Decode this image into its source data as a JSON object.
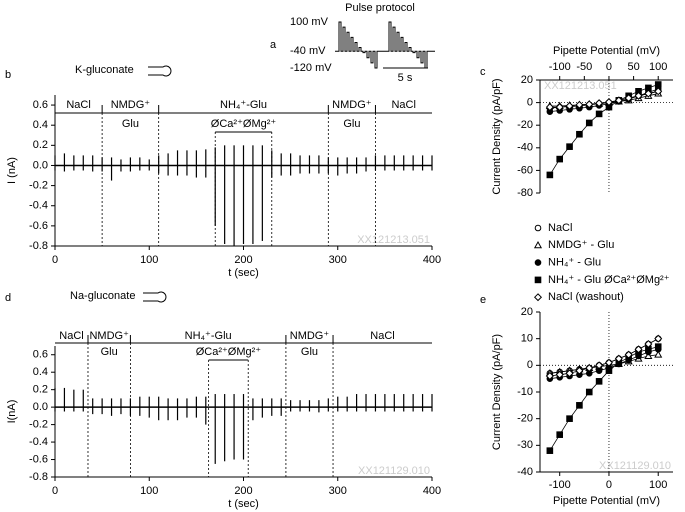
{
  "chart_data": [
    {
      "type": "protocol",
      "panel": "a",
      "title": "Pulse protocol",
      "levels": [
        {
          "value": 100,
          "label": "100 mV"
        },
        {
          "value": -40,
          "label": "-40 mV"
        },
        {
          "value": -120,
          "label": "-120 mV"
        }
      ],
      "scale_bar": "5 s"
    },
    {
      "type": "trace",
      "panel": "b",
      "pipette": "K-gluconate",
      "xlabel": "t (sec)",
      "ylabel": "I (nA)",
      "watermark": "XX121213.051",
      "xlim": [
        0,
        400
      ],
      "ylim": [
        -0.8,
        0.7
      ],
      "xticks": [
        0,
        100,
        200,
        300,
        400
      ],
      "yticks": [
        0.6,
        0.4,
        0.2,
        {
          "value": 0,
          "label": "0.0"
        },
        -0.2,
        -0.4,
        -0.6,
        -0.8
      ],
      "x": [
        0,
        10,
        20,
        30,
        40,
        50,
        60,
        70,
        80,
        90,
        100,
        110,
        120,
        130,
        140,
        150,
        160,
        170,
        180,
        190,
        200,
        210,
        220,
        230,
        240,
        250,
        260,
        270,
        280,
        290,
        300,
        310,
        320,
        330,
        340,
        350,
        360,
        370,
        380,
        390,
        400
      ],
      "series": [
        {
          "color": "#000000",
          "values": [
            0.1,
            0.12,
            0.1,
            0.1,
            0.1,
            0.08,
            0.08,
            0.06,
            0.08,
            0.08,
            0.06,
            0.1,
            0.12,
            0.15,
            0.15,
            0.15,
            0.16,
            0.18,
            0.2,
            0.2,
            0.2,
            0.2,
            0.2,
            0.15,
            0.12,
            0.12,
            0.1,
            0.1,
            0.1,
            0.08,
            0.08,
            0.08,
            0.08,
            0.08,
            0.1,
            0.1,
            0.1,
            0.1,
            0.1,
            0.1,
            0.1
          ]
        },
        {
          "color": "#000000",
          "values": [
            -0.05,
            -0.06,
            -0.05,
            -0.05,
            -0.06,
            -0.06,
            -0.15,
            -0.06,
            -0.06,
            -0.05,
            -0.05,
            -0.08,
            -0.1,
            -0.1,
            -0.1,
            -0.12,
            -0.12,
            -0.6,
            -0.78,
            -0.8,
            -0.78,
            -0.78,
            -0.75,
            -0.12,
            -0.1,
            -0.1,
            -0.08,
            -0.08,
            -0.08,
            -0.08,
            -0.1,
            -0.08,
            -0.08,
            -0.06,
            -0.05,
            -0.05,
            -0.05,
            -0.05,
            -0.05,
            -0.05,
            -0.05
          ]
        }
      ],
      "solutions": [
        {
          "label": [
            "NaCl"
          ],
          "start": 0,
          "end": 50
        },
        {
          "label": [
            "NMDG⁺",
            "Glu"
          ],
          "start": 50,
          "end": 110
        },
        {
          "label": [
            "NH₄⁺-Glu"
          ],
          "start": 110,
          "end": 290
        },
        {
          "label": [
            "NMDG⁺",
            "Glu"
          ],
          "start": 290,
          "end": 340
        },
        {
          "label": [
            "NaCl"
          ],
          "start": 340,
          "end": 400
        }
      ],
      "divalent_free": {
        "label": "ØCa²⁺ØMg²⁺",
        "start": 170,
        "end": 230
      }
    },
    {
      "type": "iv",
      "panel": "c",
      "xlabel": "Pipette Potential (mV)",
      "ylabel": "Current Density (pA/pF)",
      "xaxis": "top",
      "watermark": "XX121213.051",
      "xlim": [
        -140,
        130
      ],
      "ylim": [
        -80,
        20
      ],
      "xticks": [
        -100,
        -50,
        0,
        50,
        100
      ],
      "yticks": [
        20,
        0,
        -20,
        -40,
        -60,
        -80
      ],
      "x": [
        -120,
        -100,
        -80,
        -60,
        -40,
        -20,
        0,
        20,
        40,
        60,
        80,
        100
      ],
      "series": [
        {
          "name": "NaCl",
          "color": "#000000",
          "marker": "circle-open",
          "values": [
            -5,
            -4,
            -3.5,
            -3,
            -2,
            -1,
            0,
            2,
            4,
            6,
            8,
            10
          ]
        },
        {
          "name": "NMDG⁺ - Glu",
          "color": "#000000",
          "marker": "triangle-open",
          "values": [
            -3,
            -3,
            -2.5,
            -2,
            -1.5,
            -1,
            0,
            1,
            2,
            4,
            6,
            8
          ]
        },
        {
          "name": "NH₄⁺ - Glu",
          "color": "#000000",
          "marker": "circle-filled",
          "values": [
            -8,
            -7,
            -6,
            -5,
            -4,
            -2.5,
            -1,
            1,
            3,
            6,
            9,
            12
          ]
        },
        {
          "name": "NH₄⁺ - Glu ØCa²⁺ØMg²⁺",
          "color": "#000000",
          "marker": "square-filled",
          "values": [
            -64,
            -50,
            -39,
            -28,
            -18,
            -10,
            -4,
            2,
            6,
            10,
            13,
            16
          ]
        },
        {
          "name": "NaCl (washout)",
          "color": "#000000",
          "marker": "diamond-open",
          "values": [
            -4,
            -4,
            -3,
            -2,
            -1.5,
            -0.5,
            0.5,
            2,
            4,
            6,
            8,
            10
          ]
        }
      ]
    },
    {
      "type": "trace",
      "panel": "d",
      "pipette": "Na-gluconate",
      "xlabel": "t (sec)",
      "ylabel": "I(nA)",
      "watermark": "XX121129.010",
      "xlim": [
        0,
        400
      ],
      "ylim": [
        -0.8,
        0.7
      ],
      "xticks": [
        0,
        100,
        200,
        300,
        400
      ],
      "yticks": [
        0.6,
        0.4,
        0.2,
        {
          "value": 0,
          "label": "0.0"
        },
        -0.2,
        -0.4,
        -0.6,
        -0.8
      ],
      "x": [
        0,
        10,
        20,
        30,
        40,
        50,
        60,
        70,
        80,
        90,
        100,
        110,
        120,
        130,
        140,
        150,
        160,
        170,
        180,
        190,
        200,
        210,
        220,
        230,
        240,
        250,
        260,
        270,
        280,
        290,
        300,
        310,
        320,
        330,
        340,
        350,
        360,
        370,
        380,
        390,
        400
      ],
      "series": [
        {
          "color": "#000000",
          "values": [
            0.22,
            0.22,
            0.2,
            0.2,
            0.1,
            0.1,
            0.1,
            0.1,
            0.1,
            0.12,
            0.12,
            0.12,
            0.1,
            0.1,
            0.1,
            0.12,
            0.12,
            0.15,
            0.15,
            0.15,
            0.15,
            0.1,
            0.1,
            0.1,
            0.1,
            0.08,
            0.08,
            0.08,
            0.08,
            0.1,
            0.12,
            0.12,
            0.15,
            0.15,
            0.15,
            0.15,
            0.15,
            0.15,
            0.15,
            0.15,
            0.15
          ]
        },
        {
          "color": "#000000",
          "values": [
            -0.05,
            -0.05,
            -0.05,
            -0.05,
            -0.08,
            -0.08,
            -0.1,
            -0.08,
            -0.1,
            -0.1,
            -0.12,
            -0.15,
            -0.15,
            -0.15,
            -0.12,
            -0.12,
            -0.2,
            -0.65,
            -0.62,
            -0.6,
            -0.6,
            -0.15,
            -0.12,
            -0.1,
            -0.1,
            -0.05,
            -0.05,
            -0.05,
            -0.06,
            -0.05,
            -0.05,
            -0.05,
            -0.05,
            -0.05,
            -0.05,
            -0.05,
            -0.05,
            -0.05,
            -0.05,
            -0.05,
            -0.05
          ]
        }
      ],
      "solutions": [
        {
          "label": [
            "NaCl"
          ],
          "start": 0,
          "end": 35
        },
        {
          "label": [
            "NMDG⁺",
            "Glu"
          ],
          "start": 35,
          "end": 80
        },
        {
          "label": [
            "NH₄⁺-Glu"
          ],
          "start": 80,
          "end": 245
        },
        {
          "label": [
            "NMDG⁺",
            "Glu"
          ],
          "start": 245,
          "end": 295
        },
        {
          "label": [
            "NaCl"
          ],
          "start": 295,
          "end": 400
        }
      ],
      "divalent_free": {
        "label": "ØCa²⁺ØMg²⁺",
        "start": 163,
        "end": 205
      }
    },
    {
      "type": "iv",
      "panel": "e",
      "xlabel": "Pipette Potential (mV)",
      "ylabel": "Current Density (pA/pF)",
      "xaxis": "bottom",
      "watermark": "XX121129.010",
      "xlim": [
        -140,
        130
      ],
      "ylim": [
        -40,
        20
      ],
      "xticks": [
        -100,
        0,
        100
      ],
      "yticks": [
        20,
        10,
        0,
        -10,
        -20,
        -30,
        -40
      ],
      "x": [
        -120,
        -100,
        -80,
        -60,
        -40,
        -20,
        0,
        20,
        40,
        60,
        80,
        100
      ],
      "series": [
        {
          "color": "#000000",
          "marker": "circle-open",
          "values": [
            -3,
            -2.5,
            -2,
            -1.5,
            -1,
            0,
            1,
            2.5,
            4,
            6,
            8,
            10
          ]
        },
        {
          "color": "#000000",
          "marker": "triangle-open",
          "values": [
            -3,
            -2.5,
            -2,
            -1.5,
            -1,
            -0.5,
            0,
            0.5,
            1.5,
            2.5,
            3.5,
            4
          ]
        },
        {
          "color": "#000000",
          "marker": "circle-filled",
          "values": [
            -5,
            -4.5,
            -4,
            -3.5,
            -3,
            -2,
            -1,
            0.5,
            2,
            3.5,
            5,
            6
          ]
        },
        {
          "color": "#000000",
          "marker": "square-filled",
          "values": [
            -32,
            -26,
            -20,
            -15,
            -10,
            -6,
            -2,
            1,
            3,
            5,
            6,
            7
          ]
        },
        {
          "color": "#000000",
          "marker": "diamond-open",
          "values": [
            -4,
            -3.5,
            -3,
            -2,
            -1,
            0,
            1,
            2.5,
            4,
            6,
            8,
            10
          ]
        }
      ]
    }
  ]
}
